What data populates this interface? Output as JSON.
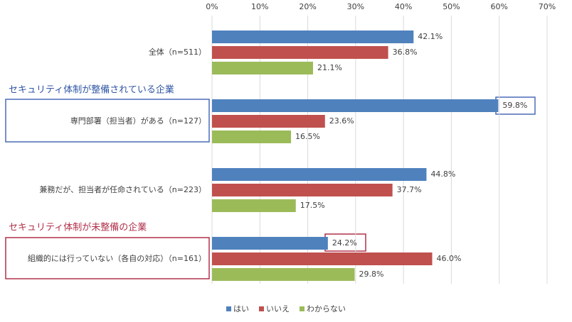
{
  "chart_data": {
    "type": "bar",
    "orientation": "horizontal",
    "categories": [
      "全体（n=511）",
      "専門部署（担当者）がある（n=127）",
      "兼務だが、担当者が任命されている（n=223）",
      "組織的には行っていない（各自の対応）（n=161）"
    ],
    "series": [
      {
        "name": "はい",
        "color": "#4f81bd",
        "values": [
          42.1,
          59.8,
          44.8,
          24.2
        ],
        "value_labels": [
          "42.1%",
          "59.8%",
          "44.8%",
          "24.2%"
        ]
      },
      {
        "name": "いいえ",
        "color": "#c0504d",
        "values": [
          36.8,
          23.6,
          37.7,
          46.0
        ],
        "value_labels": [
          "36.8%",
          "23.6%",
          "37.7%",
          "46.0%"
        ]
      },
      {
        "name": "わからない",
        "color": "#9bbb59",
        "values": [
          21.1,
          16.5,
          17.5,
          29.8
        ],
        "value_labels": [
          "21.1%",
          "16.5%",
          "17.5%",
          "29.8%"
        ]
      }
    ],
    "xlim": [
      0,
      70
    ],
    "xticks": [
      {
        "value": 0,
        "label": "0%"
      },
      {
        "value": 10,
        "label": "10%"
      },
      {
        "value": 20,
        "label": "20%"
      },
      {
        "value": 30,
        "label": "30%"
      },
      {
        "value": 40,
        "label": "40%"
      },
      {
        "value": 50,
        "label": "50%"
      },
      {
        "value": 60,
        "label": "60%"
      },
      {
        "value": 70,
        "label": "70%"
      }
    ],
    "grid": true,
    "legend": "bottom",
    "annotations": [
      {
        "text": "セキュリティ体制が整備されている企業",
        "color": "#2f55a4"
      },
      {
        "text": "セキュリティ体制が未整備の企業",
        "color": "#b0304a"
      }
    ]
  }
}
